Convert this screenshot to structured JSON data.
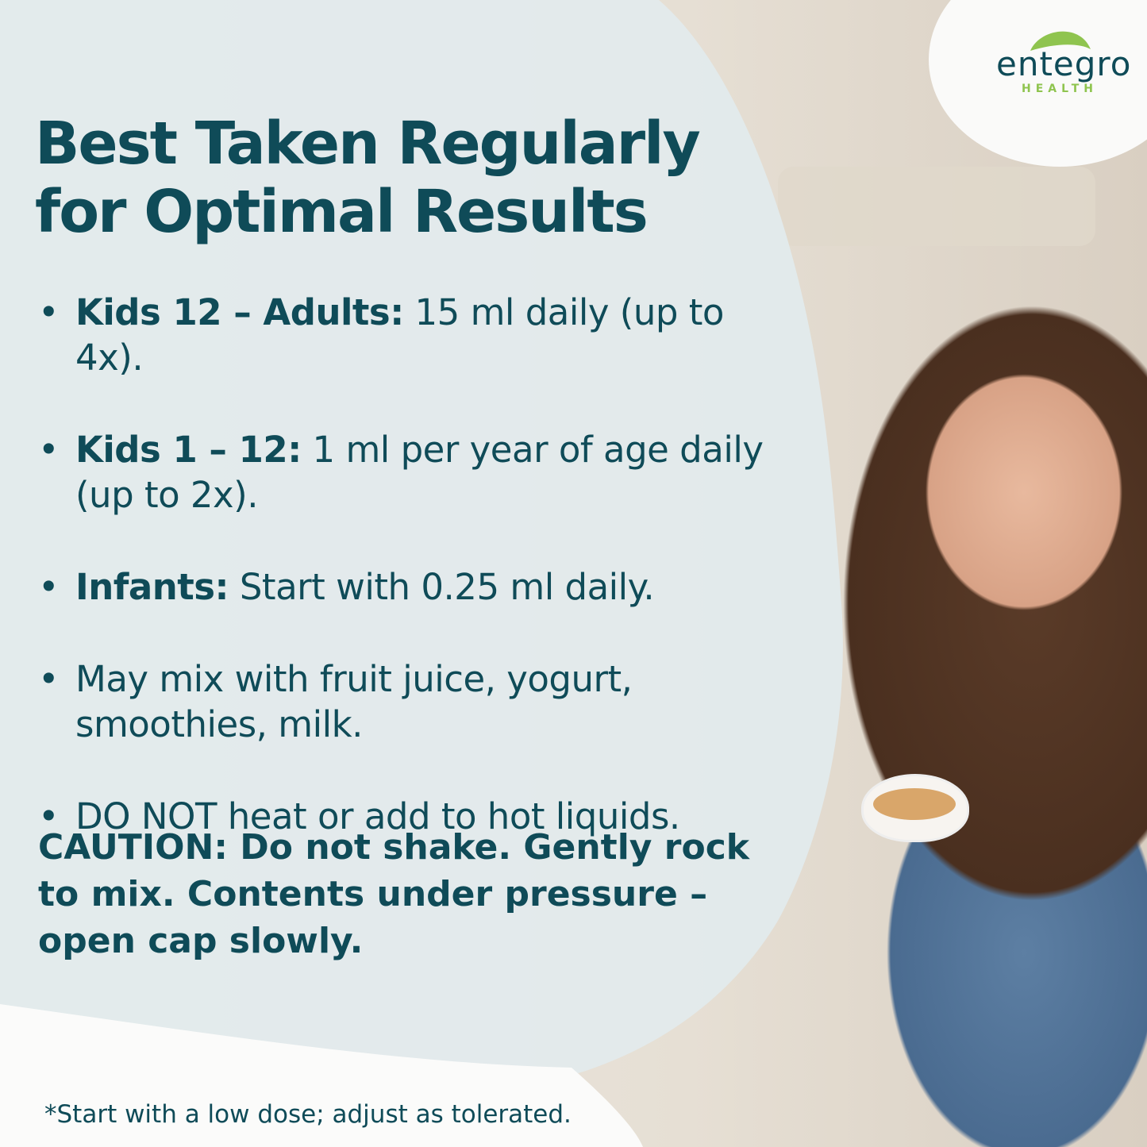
{
  "brand": {
    "name": "entegro",
    "sub": "HEALTH",
    "colors": {
      "primary": "#0f4b58",
      "leaf": "#8fc44f"
    }
  },
  "title": "Best Taken Regularly for Optimal Results",
  "bullets": [
    {
      "bold": "Kids 12 – Adults:",
      "text": " 15 ml daily (up to 4x)."
    },
    {
      "bold": "Kids 1 – 12:",
      "text": " 1 ml per year of age daily (up to 2x)."
    },
    {
      "bold": "Infants:",
      "text": " Start with 0.25 ml daily."
    },
    {
      "bold": "",
      "text": "May mix with fruit juice, yogurt, smoothies, milk."
    },
    {
      "bold": "",
      "text": "DO NOT heat or add to hot liquids."
    }
  ],
  "caution": "CAUTION: Do not shake. Gently rock to mix. Contents under pressure – open cap slowly.",
  "footnote": "*Start with a low dose; adjust as tolerated."
}
